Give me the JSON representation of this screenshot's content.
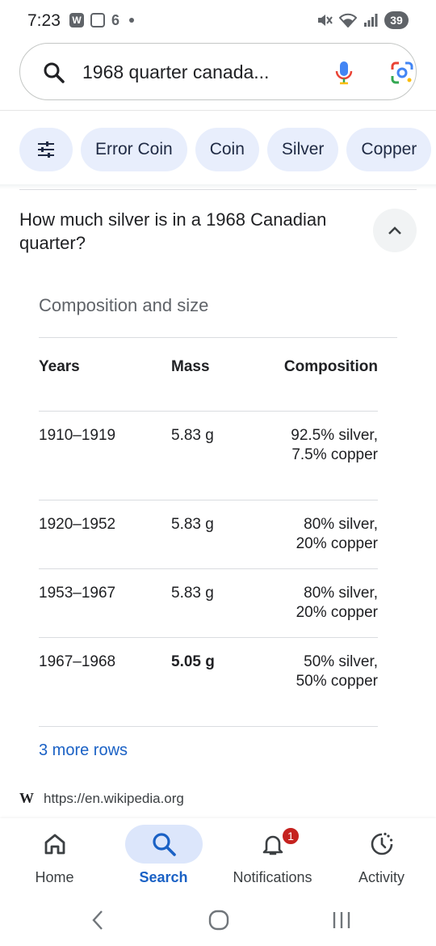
{
  "status_bar": {
    "time": "7:23",
    "notif_w": "W",
    "notif_six": "6",
    "battery": "39"
  },
  "search": {
    "query": "1968 quarter canada..."
  },
  "chips": [
    {
      "label": "Error Coin"
    },
    {
      "label": "Coin"
    },
    {
      "label": "Silver"
    },
    {
      "label": "Copper"
    }
  ],
  "question": "How much silver is in a 1968 Canadian quarter?",
  "table": {
    "caption": "Composition and size",
    "headers": {
      "years": "Years",
      "mass": "Mass",
      "composition": "Composition"
    },
    "rows": [
      {
        "years": "1910–1919",
        "mass": "5.83 g",
        "composition": "92.5% silver, 7.5% copper"
      },
      {
        "years": "1920–1952",
        "mass": "5.83 g",
        "composition": "80% silver, 20% copper"
      },
      {
        "years": "1953–1967",
        "mass": "5.83 g",
        "composition": "80% silver, 20% copper"
      },
      {
        "years": "1967–1968",
        "mass": "5.05 g",
        "composition": "50% silver, 50% copper"
      }
    ],
    "more_rows": "3 more rows"
  },
  "source": {
    "icon_letter": "W",
    "url": "https://en.wikipedia.org"
  },
  "bottom_nav": [
    {
      "label": "Home"
    },
    {
      "label": "Search"
    },
    {
      "label": "Notifications",
      "badge": "1"
    },
    {
      "label": "Activity"
    }
  ],
  "colors": {
    "chip_bg": "#e8eefc",
    "link": "#1a61c5",
    "active_pill": "#dce6fb",
    "badge": "#c5221f"
  }
}
